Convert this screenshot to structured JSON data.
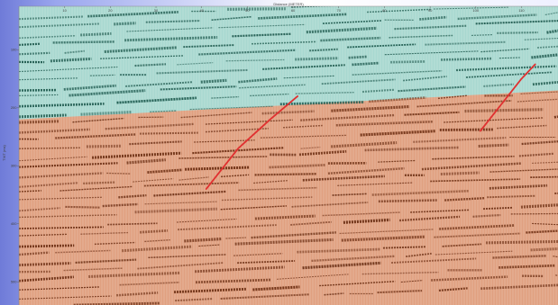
{
  "chart_data": {
    "type": "seismic-section",
    "title": "",
    "xlabel": "Distance (METER)",
    "ylabel": "TWT (ms)",
    "x_ticks": [
      "10",
      "20",
      "30",
      "40",
      "50",
      "60",
      "70",
      "80",
      "90",
      "100",
      "110"
    ],
    "y_ticks": [
      "100",
      "200",
      "300",
      "400",
      "500"
    ],
    "xlim": [
      0,
      118
    ],
    "ylim": [
      25,
      540
    ],
    "grid": false,
    "layers": [
      {
        "name": "",
        "color": "#a8d8d0",
        "top_ms": 25
      },
      {
        "name": "",
        "color": "#e0a080",
        "top_profile": [
          [
            0,
            220
          ],
          [
            60,
            195
          ],
          [
            118,
            170
          ]
        ]
      }
    ],
    "faults": [
      {
        "name": "",
        "color": "#e03030",
        "points": [
          [
            41,
            340
          ],
          [
            48,
            270
          ],
          [
            55,
            220
          ],
          [
            61,
            180
          ]
        ]
      },
      {
        "name": "",
        "color": "#e03030",
        "points": [
          [
            101,
            240
          ],
          [
            106,
            190
          ],
          [
            110,
            150
          ],
          [
            113,
            125
          ]
        ]
      }
    ]
  }
}
